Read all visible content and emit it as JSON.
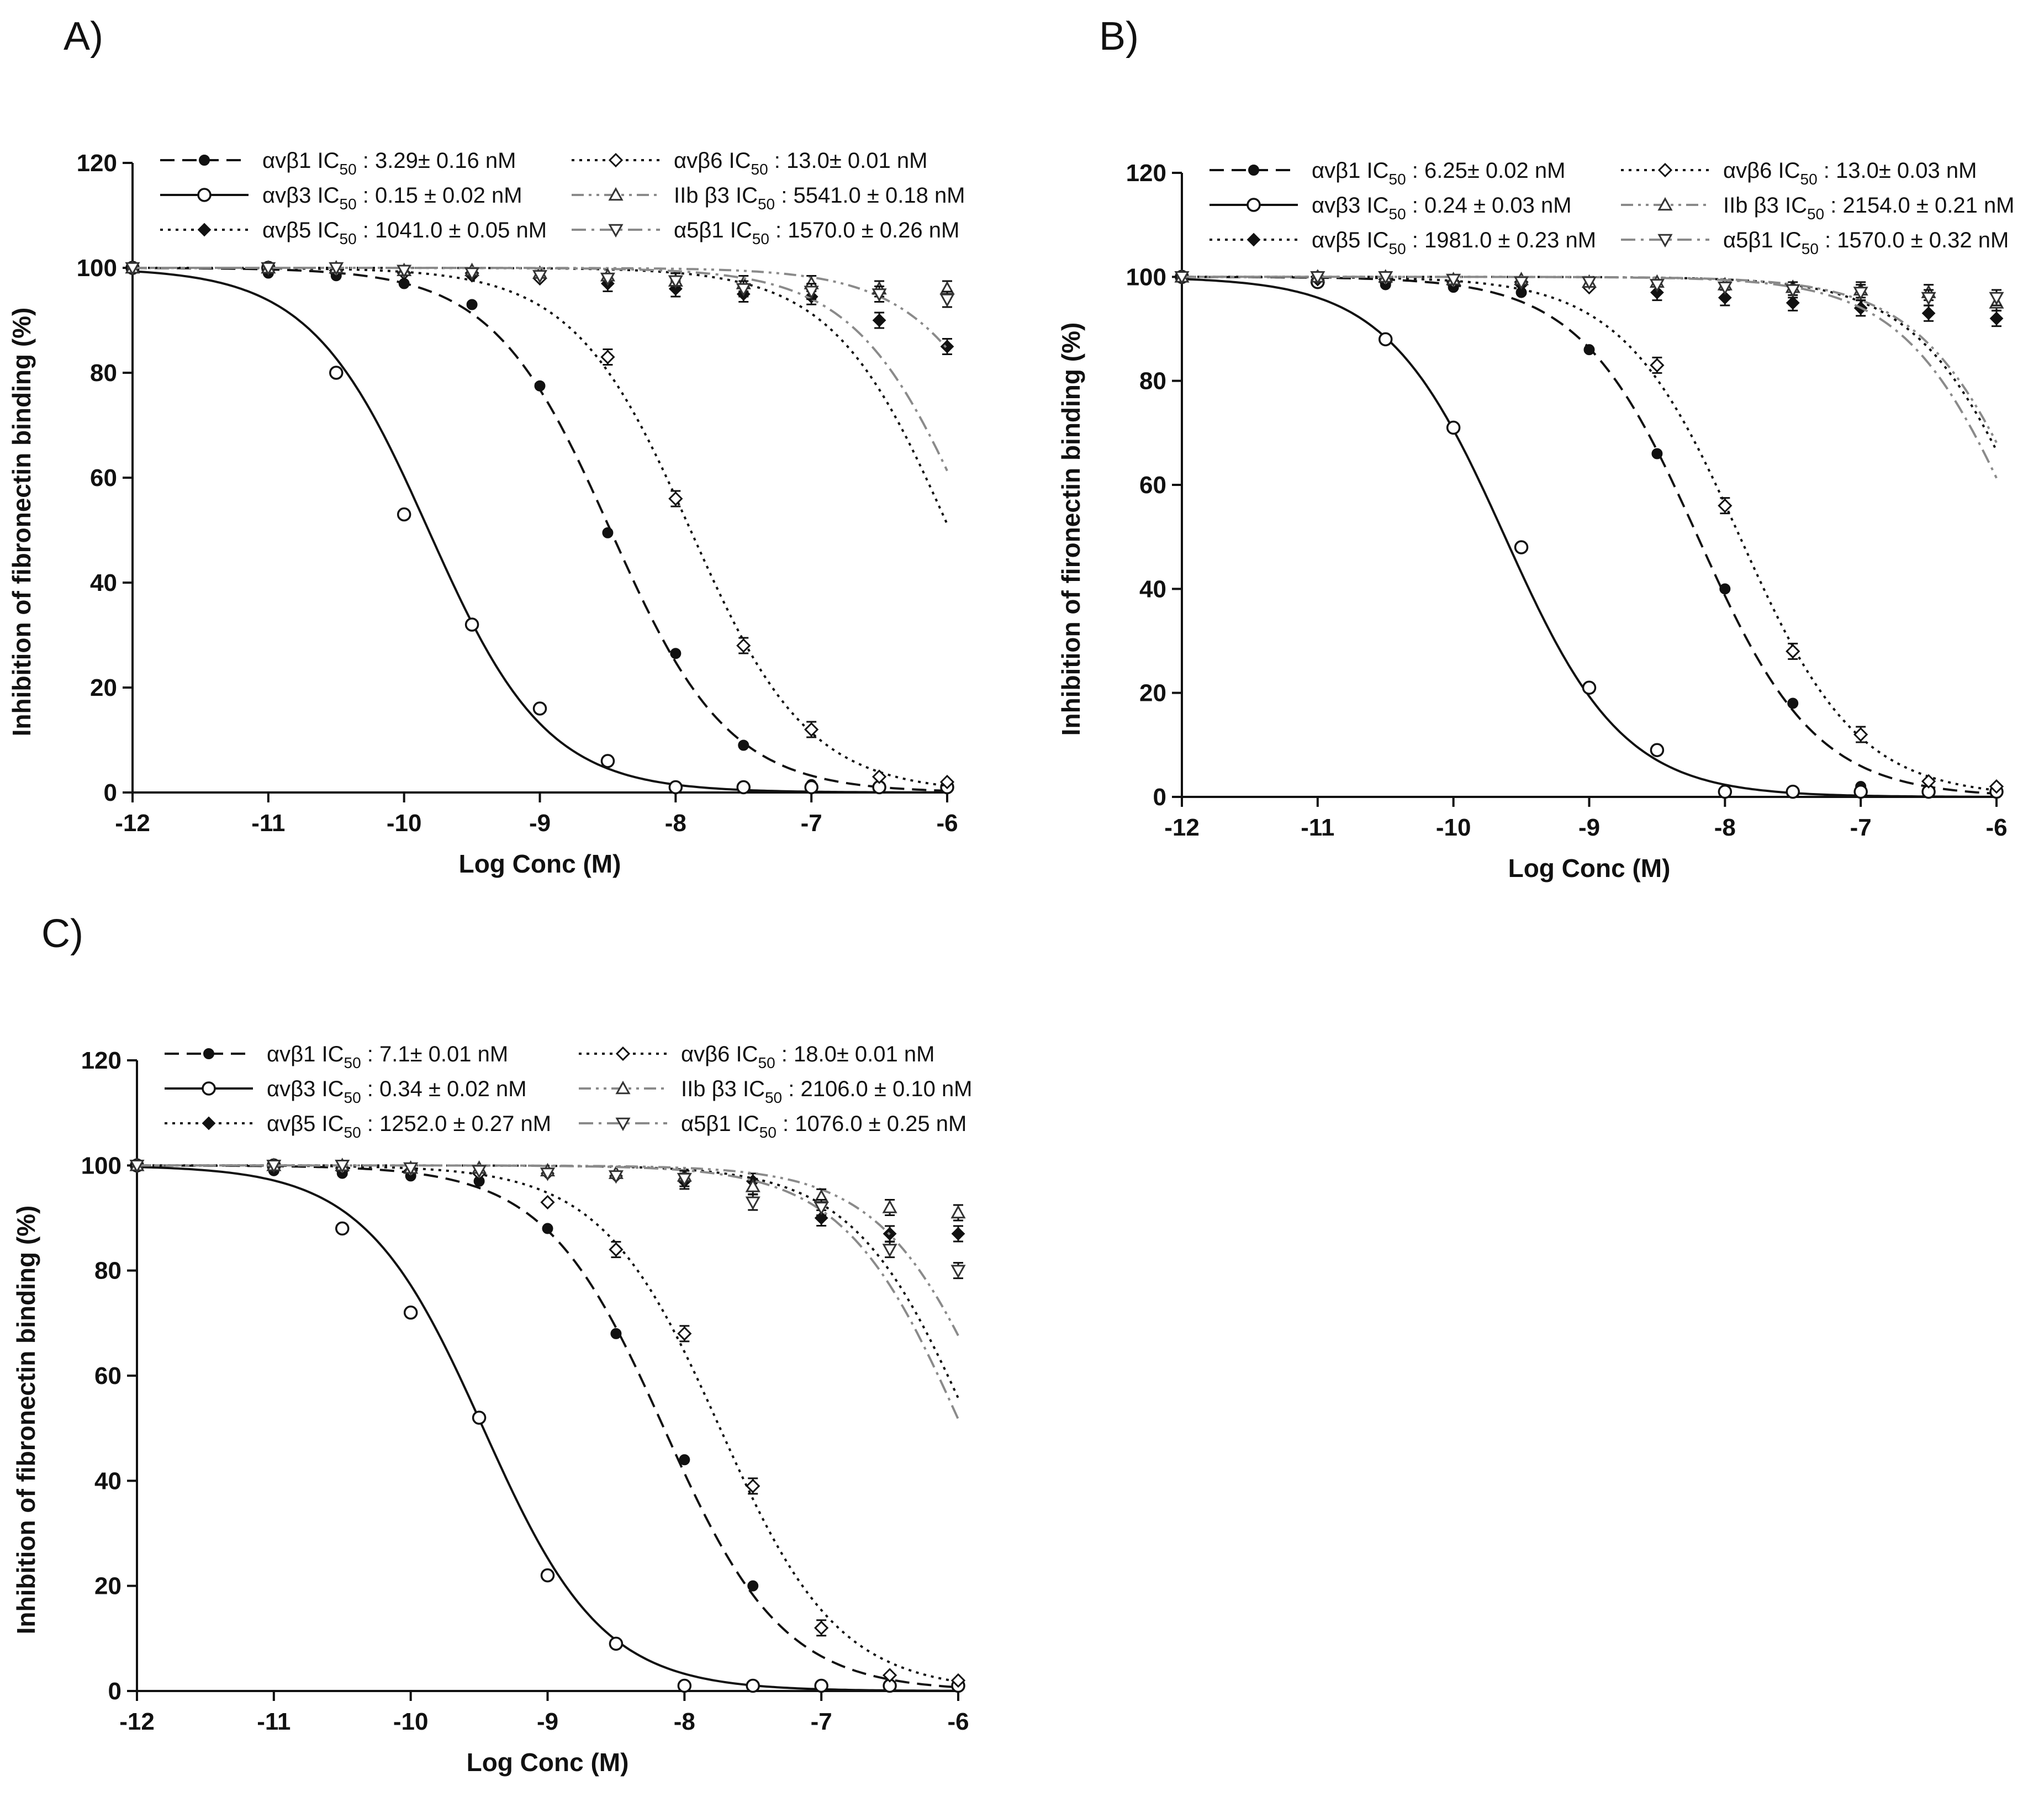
{
  "panels": [
    {
      "label": "A)",
      "x_label": "Log Conc (M)",
      "y_label": "Inhibition of fibronectin binding (%)",
      "x_ticks": [
        "-12",
        "-11",
        "-10",
        "-9",
        "-8",
        "-7",
        "-6"
      ],
      "y_ticks": [
        "0",
        "20",
        "40",
        "60",
        "80",
        "100",
        "120"
      ],
      "legend": [
        {
          "name": "αvβ1",
          "ic50": "3.29± 0.16 nM"
        },
        {
          "name": "αvβ3",
          "ic50": "0.15 ± 0.02 nM"
        },
        {
          "name": "αvβ5",
          "ic50": "1041.0 ± 0.05 nM"
        },
        {
          "name": "αvβ6",
          "ic50": "13.0± 0.01 nM"
        },
        {
          "name": "IIb β3",
          "ic50": "5541.0 ± 0.18 nM"
        },
        {
          "name": "α5β1",
          "ic50": "1570.0 ± 0.26 nM"
        }
      ]
    },
    {
      "label": "B)",
      "x_label": "Log Conc (M)",
      "y_label": "Inhibition of fironectin binding (%)",
      "x_ticks": [
        "-12",
        "-11",
        "-10",
        "-9",
        "-8",
        "-7",
        "-6"
      ],
      "y_ticks": [
        "0",
        "20",
        "40",
        "60",
        "80",
        "100",
        "120"
      ],
      "legend": [
        {
          "name": "αvβ1",
          "ic50": "6.25± 0.02 nM"
        },
        {
          "name": "αvβ3",
          "ic50": "0.24 ± 0.03 nM"
        },
        {
          "name": "αvβ5",
          "ic50": "1981.0 ± 0.23 nM"
        },
        {
          "name": "αvβ6",
          "ic50": "13.0± 0.03 nM"
        },
        {
          "name": "IIb β3",
          "ic50": "2154.0 ± 0.21 nM"
        },
        {
          "name": "α5β1",
          "ic50": "1570.0 ± 0.32 nM"
        }
      ]
    },
    {
      "label": "C)",
      "x_label": "Log Conc (M)",
      "y_label": "Inhibition of fibronectin binding (%)",
      "x_ticks": [
        "-12",
        "-11",
        "-10",
        "-9",
        "-8",
        "-7",
        "-6"
      ],
      "y_ticks": [
        "0",
        "20",
        "40",
        "60",
        "80",
        "100",
        "120"
      ],
      "legend": [
        {
          "name": "αvβ1",
          "ic50": "7.1± 0.01 nM"
        },
        {
          "name": "αvβ3",
          "ic50": "0.34 ± 0.02 nM"
        },
        {
          "name": "αvβ5",
          "ic50": "1252.0 ± 0.27 nM"
        },
        {
          "name": "αvβ6",
          "ic50": "18.0± 0.01 nM"
        },
        {
          "name": "IIb β3",
          "ic50": "2106.0 ± 0.10 nM"
        },
        {
          "name": "α5β1",
          "ic50": "1076.0 ± 0.25 nM"
        }
      ]
    }
  ],
  "ic50_prefix": "IC",
  "ic50_sub": "50",
  "chart_data": [
    {
      "type": "scatter",
      "title": "A)",
      "xlabel": "Log Conc (M)",
      "ylabel": "Inhibition of fibronectin binding (%)",
      "xlim": [
        -12,
        -6
      ],
      "ylim": [
        0,
        120
      ],
      "series": [
        {
          "name": "αvβ1",
          "marker": "filled-circle",
          "line": "dashed",
          "color": "#111111",
          "log_ic50": -8.48,
          "x": [
            -12,
            -11,
            -10.5,
            -10,
            -9.5,
            -9,
            -8.5,
            -8,
            -7.5,
            -7,
            -6.5,
            -6
          ],
          "y": [
            100,
            99,
            98.5,
            97,
            93,
            77.5,
            49.5,
            26.5,
            9,
            1.5,
            1,
            1
          ]
        },
        {
          "name": "αvβ3",
          "marker": "open-circle",
          "line": "solid",
          "color": "#111111",
          "log_ic50": -9.82,
          "x": [
            -12,
            -11,
            -10.5,
            -10,
            -9.5,
            -9,
            -8.5,
            -8,
            -7.5,
            -7,
            -6.5,
            -6
          ],
          "y": [
            100,
            100,
            80,
            53,
            32,
            16,
            6,
            1,
            1,
            1,
            1,
            1
          ]
        },
        {
          "name": "αvβ5",
          "marker": "filled-diamond",
          "line": "dotted",
          "color": "#111111",
          "log_ic50": -5.98,
          "x": [
            -12,
            -11,
            -10.5,
            -10,
            -9.5,
            -9,
            -8.5,
            -8,
            -7.5,
            -7,
            -6.5,
            -6
          ],
          "y": [
            100,
            99.5,
            99,
            99,
            98.5,
            98,
            97,
            96,
            95,
            94.5,
            90,
            85
          ]
        },
        {
          "name": "αvβ6",
          "marker": "open-diamond",
          "line": "dotted",
          "color": "#111111",
          "log_ic50": -7.89,
          "x": [
            -12,
            -11,
            -10.5,
            -10,
            -9.5,
            -9,
            -8.5,
            -8,
            -7.5,
            -7,
            -6.5,
            -6
          ],
          "y": [
            100,
            100,
            99.5,
            99,
            99,
            98,
            83,
            56,
            28,
            12,
            3,
            2
          ]
        },
        {
          "name": "IIb β3",
          "marker": "open-triangle-up",
          "line": "dash-dot-dot",
          "color": "#8a8a8a",
          "log_ic50": -5.26,
          "x": [
            -12,
            -11,
            -10.5,
            -10,
            -9.5,
            -9,
            -8.5,
            -8,
            -7.5,
            -7,
            -6.5,
            -6
          ],
          "y": [
            100,
            100,
            100,
            99.5,
            99.5,
            99,
            98.5,
            97.5,
            97,
            97,
            96,
            96
          ]
        },
        {
          "name": "α5β1",
          "marker": "open-triangle-down",
          "line": "dash-dot",
          "color": "#8a8a8a",
          "log_ic50": -5.8,
          "x": [
            -12,
            -11,
            -10.5,
            -10,
            -9.5,
            -9,
            -8.5,
            -8,
            -7.5,
            -7,
            -6.5,
            -6
          ],
          "y": [
            100,
            100,
            100,
            99.5,
            99,
            98.5,
            98,
            97.5,
            96,
            95.5,
            95,
            94
          ]
        }
      ]
    },
    {
      "type": "scatter",
      "title": "B)",
      "xlabel": "Log Conc (M)",
      "ylabel": "Inhibition of fironectin binding (%)",
      "xlim": [
        -12,
        -6
      ],
      "ylim": [
        0,
        120
      ],
      "series": [
        {
          "name": "αvβ1",
          "marker": "filled-circle",
          "line": "dashed",
          "color": "#111111",
          "log_ic50": -8.2,
          "x": [
            -12,
            -11,
            -10.5,
            -10,
            -9.5,
            -9,
            -8.5,
            -8,
            -7.5,
            -7,
            -6.5,
            -6
          ],
          "y": [
            100,
            99,
            98.5,
            98,
            97,
            86,
            66,
            40,
            18,
            2,
            1,
            1
          ]
        },
        {
          "name": "αvβ3",
          "marker": "open-circle",
          "line": "solid",
          "color": "#111111",
          "log_ic50": -9.62,
          "x": [
            -12,
            -11,
            -10.5,
            -10,
            -9.5,
            -9,
            -8.5,
            -8,
            -7.5,
            -7,
            -6.5,
            -6
          ],
          "y": [
            100,
            99,
            88,
            71,
            48,
            21,
            9,
            1,
            1,
            1,
            1,
            1
          ]
        },
        {
          "name": "αvβ5",
          "marker": "filled-diamond",
          "line": "dotted",
          "color": "#111111",
          "log_ic50": -5.7,
          "x": [
            -12,
            -11,
            -10.5,
            -10,
            -9.5,
            -9,
            -8.5,
            -8,
            -7.5,
            -7,
            -6.5,
            -6
          ],
          "y": [
            100,
            99.5,
            99,
            98.5,
            98.5,
            98,
            97,
            96,
            95,
            94,
            93,
            92
          ]
        },
        {
          "name": "αvβ6",
          "marker": "open-diamond",
          "line": "dotted",
          "color": "#111111",
          "log_ic50": -7.89,
          "x": [
            -12,
            -11,
            -10.5,
            -10,
            -9.5,
            -9,
            -8.5,
            -8,
            -7.5,
            -7,
            -6.5,
            -6
          ],
          "y": [
            100,
            100,
            99.5,
            99,
            99,
            98,
            83,
            56,
            28,
            12,
            3,
            2
          ]
        },
        {
          "name": "IIb β3",
          "marker": "open-triangle-up",
          "line": "dash-dot-dot",
          "color": "#8a8a8a",
          "log_ic50": -5.67,
          "x": [
            -12,
            -11,
            -10.5,
            -10,
            -9.5,
            -9,
            -8.5,
            -8,
            -7.5,
            -7,
            -6.5,
            -6
          ],
          "y": [
            100,
            100,
            100,
            99.5,
            99.5,
            99,
            99,
            98.5,
            98,
            97.5,
            97,
            95
          ]
        },
        {
          "name": "α5β1",
          "marker": "open-triangle-down",
          "line": "dash-dot",
          "color": "#8a8a8a",
          "log_ic50": -5.8,
          "x": [
            -12,
            -11,
            -10.5,
            -10,
            -9.5,
            -9,
            -8.5,
            -8,
            -7.5,
            -7,
            -6.5,
            -6
          ],
          "y": [
            100,
            100,
            100,
            99.5,
            99,
            99,
            98.5,
            98,
            97.5,
            97,
            96,
            96
          ]
        }
      ]
    },
    {
      "type": "scatter",
      "title": "C)",
      "xlabel": "Log Conc (M)",
      "ylabel": "Inhibition of fibronectin binding (%)",
      "xlim": [
        -12,
        -6
      ],
      "ylim": [
        0,
        120
      ],
      "series": [
        {
          "name": "αvβ1",
          "marker": "filled-circle",
          "line": "dashed",
          "color": "#111111",
          "log_ic50": -8.15,
          "x": [
            -12,
            -11,
            -10.5,
            -10,
            -9.5,
            -9,
            -8.5,
            -8,
            -7.5,
            -7,
            -6.5,
            -6
          ],
          "y": [
            100,
            99,
            98.5,
            98,
            97,
            88,
            68,
            44,
            20,
            1,
            1,
            1
          ]
        },
        {
          "name": "αvβ3",
          "marker": "open-circle",
          "line": "solid",
          "color": "#111111",
          "log_ic50": -9.47,
          "x": [
            -12,
            -11,
            -10.5,
            -10,
            -9.5,
            -9,
            -8.5,
            -8,
            -7.5,
            -7,
            -6.5,
            -6
          ],
          "y": [
            100,
            100,
            88,
            72,
            52,
            22,
            9,
            1,
            1,
            1,
            1,
            1
          ]
        },
        {
          "name": "αvβ5",
          "marker": "filled-diamond",
          "line": "dotted",
          "color": "#111111",
          "log_ic50": -5.9,
          "x": [
            -12,
            -11,
            -10.5,
            -10,
            -9.5,
            -9,
            -8.5,
            -8,
            -7.5,
            -7,
            -6.5,
            -6
          ],
          "y": [
            100,
            99.5,
            99,
            99,
            98.5,
            98.5,
            98,
            97,
            97,
            90,
            87,
            87
          ]
        },
        {
          "name": "αvβ6",
          "marker": "open-diamond",
          "line": "dotted",
          "color": "#111111",
          "log_ic50": -7.74,
          "x": [
            -12,
            -11,
            -10.5,
            -10,
            -9.5,
            -9,
            -8.5,
            -8,
            -7.5,
            -7,
            -6.5,
            -6
          ],
          "y": [
            100,
            100,
            99.5,
            99,
            98.5,
            93,
            84,
            68,
            39,
            12,
            3,
            2
          ]
        },
        {
          "name": "IIb β3",
          "marker": "open-triangle-up",
          "line": "dash-dot-dot",
          "color": "#8a8a8a",
          "log_ic50": -5.68,
          "x": [
            -12,
            -11,
            -10.5,
            -10,
            -9.5,
            -9,
            -8.5,
            -8,
            -7.5,
            -7,
            -6.5,
            -6
          ],
          "y": [
            100,
            100,
            100,
            99.5,
            99.5,
            99,
            98.5,
            98,
            96,
            94,
            92,
            91
          ]
        },
        {
          "name": "α5β1",
          "marker": "open-triangle-down",
          "line": "dash-dot",
          "color": "#8a8a8a",
          "log_ic50": -5.97,
          "x": [
            -12,
            -11,
            -10.5,
            -10,
            -9.5,
            -9,
            -8.5,
            -8,
            -7.5,
            -7,
            -6.5,
            -6
          ],
          "y": [
            100,
            100,
            100,
            99.5,
            99,
            98.5,
            98,
            97.5,
            93,
            92,
            84,
            80
          ]
        }
      ]
    }
  ]
}
